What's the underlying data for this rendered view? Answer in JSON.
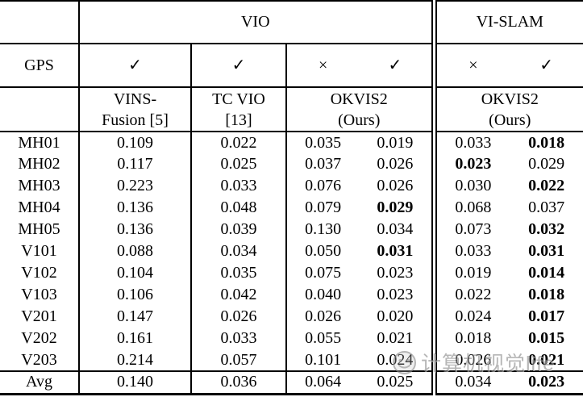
{
  "table": {
    "top_header": {
      "vio": "VIO",
      "vislam": "VI-SLAM"
    },
    "gps": {
      "label": "GPS",
      "vins": "✓",
      "tc": "✓",
      "okvis_vio": [
        "×",
        "✓"
      ],
      "okvis_slam": [
        "×",
        "✓"
      ]
    },
    "methods": [
      {
        "line1": "VINS-",
        "line2": "Fusion [5]"
      },
      {
        "line1": "TC VIO",
        "line2": "[13]"
      },
      {
        "line1": "OKVIS2",
        "line2": "(Ours)"
      },
      {
        "line1": "OKVIS2",
        "line2": "(Ours)"
      }
    ],
    "rows": [
      {
        "label": "MH01",
        "cells": [
          {
            "t": "0.109"
          },
          {
            "t": "0.022"
          },
          {
            "t": "0.035"
          },
          {
            "t": "0.019"
          },
          {
            "t": "0.033"
          },
          {
            "t": "0.018",
            "b": true
          }
        ]
      },
      {
        "label": "MH02",
        "cells": [
          {
            "t": "0.117"
          },
          {
            "t": "0.025"
          },
          {
            "t": "0.037"
          },
          {
            "t": "0.026"
          },
          {
            "t": "0.023",
            "b": true
          },
          {
            "t": "0.029"
          }
        ]
      },
      {
        "label": "MH03",
        "cells": [
          {
            "t": "0.223"
          },
          {
            "t": "0.033"
          },
          {
            "t": "0.076"
          },
          {
            "t": "0.026"
          },
          {
            "t": "0.030"
          },
          {
            "t": "0.022",
            "b": true
          }
        ]
      },
      {
        "label": "MH04",
        "cells": [
          {
            "t": "0.136"
          },
          {
            "t": "0.048"
          },
          {
            "t": "0.079"
          },
          {
            "t": "0.029",
            "b": true
          },
          {
            "t": "0.068"
          },
          {
            "t": "0.037"
          }
        ]
      },
      {
        "label": "MH05",
        "cells": [
          {
            "t": "0.136"
          },
          {
            "t": "0.039"
          },
          {
            "t": "0.130"
          },
          {
            "t": "0.034"
          },
          {
            "t": "0.073"
          },
          {
            "t": "0.032",
            "b": true
          }
        ]
      },
      {
        "label": "V101",
        "cells": [
          {
            "t": "0.088"
          },
          {
            "t": "0.034"
          },
          {
            "t": "0.050"
          },
          {
            "t": "0.031",
            "b": true
          },
          {
            "t": "0.033"
          },
          {
            "t": "0.031",
            "b": true
          }
        ]
      },
      {
        "label": "V102",
        "cells": [
          {
            "t": "0.104"
          },
          {
            "t": "0.035"
          },
          {
            "t": "0.075"
          },
          {
            "t": "0.023"
          },
          {
            "t": "0.019"
          },
          {
            "t": "0.014",
            "b": true
          }
        ]
      },
      {
        "label": "V103",
        "cells": [
          {
            "t": "0.106"
          },
          {
            "t": "0.042"
          },
          {
            "t": "0.040"
          },
          {
            "t": "0.023"
          },
          {
            "t": "0.022"
          },
          {
            "t": "0.018",
            "b": true
          }
        ]
      },
      {
        "label": "V201",
        "cells": [
          {
            "t": "0.147"
          },
          {
            "t": "0.026"
          },
          {
            "t": "0.026"
          },
          {
            "t": "0.020"
          },
          {
            "t": "0.024"
          },
          {
            "t": "0.017",
            "b": true
          }
        ]
      },
      {
        "label": "V202",
        "cells": [
          {
            "t": "0.161"
          },
          {
            "t": "0.033"
          },
          {
            "t": "0.055"
          },
          {
            "t": "0.021"
          },
          {
            "t": "0.018"
          },
          {
            "t": "0.015",
            "b": true
          }
        ]
      },
      {
        "label": "V203",
        "cells": [
          {
            "t": "0.214"
          },
          {
            "t": "0.057"
          },
          {
            "t": "0.101"
          },
          {
            "t": "0.024"
          },
          {
            "t": "0.026"
          },
          {
            "t": "0.021",
            "b": true
          }
        ]
      }
    ],
    "avg_row": {
      "label": "Avg",
      "cells": [
        {
          "t": "0.140"
        },
        {
          "t": "0.036"
        },
        {
          "t": "0.064"
        },
        {
          "t": "0.025"
        },
        {
          "t": "0.034"
        },
        {
          "t": "0.023",
          "b": true
        }
      ]
    }
  },
  "watermark": {
    "text": "计算机视觉life"
  },
  "colors": {
    "border": "#000000",
    "text": "#000000",
    "background": "#ffffff",
    "watermark": "#8a8a8a"
  }
}
